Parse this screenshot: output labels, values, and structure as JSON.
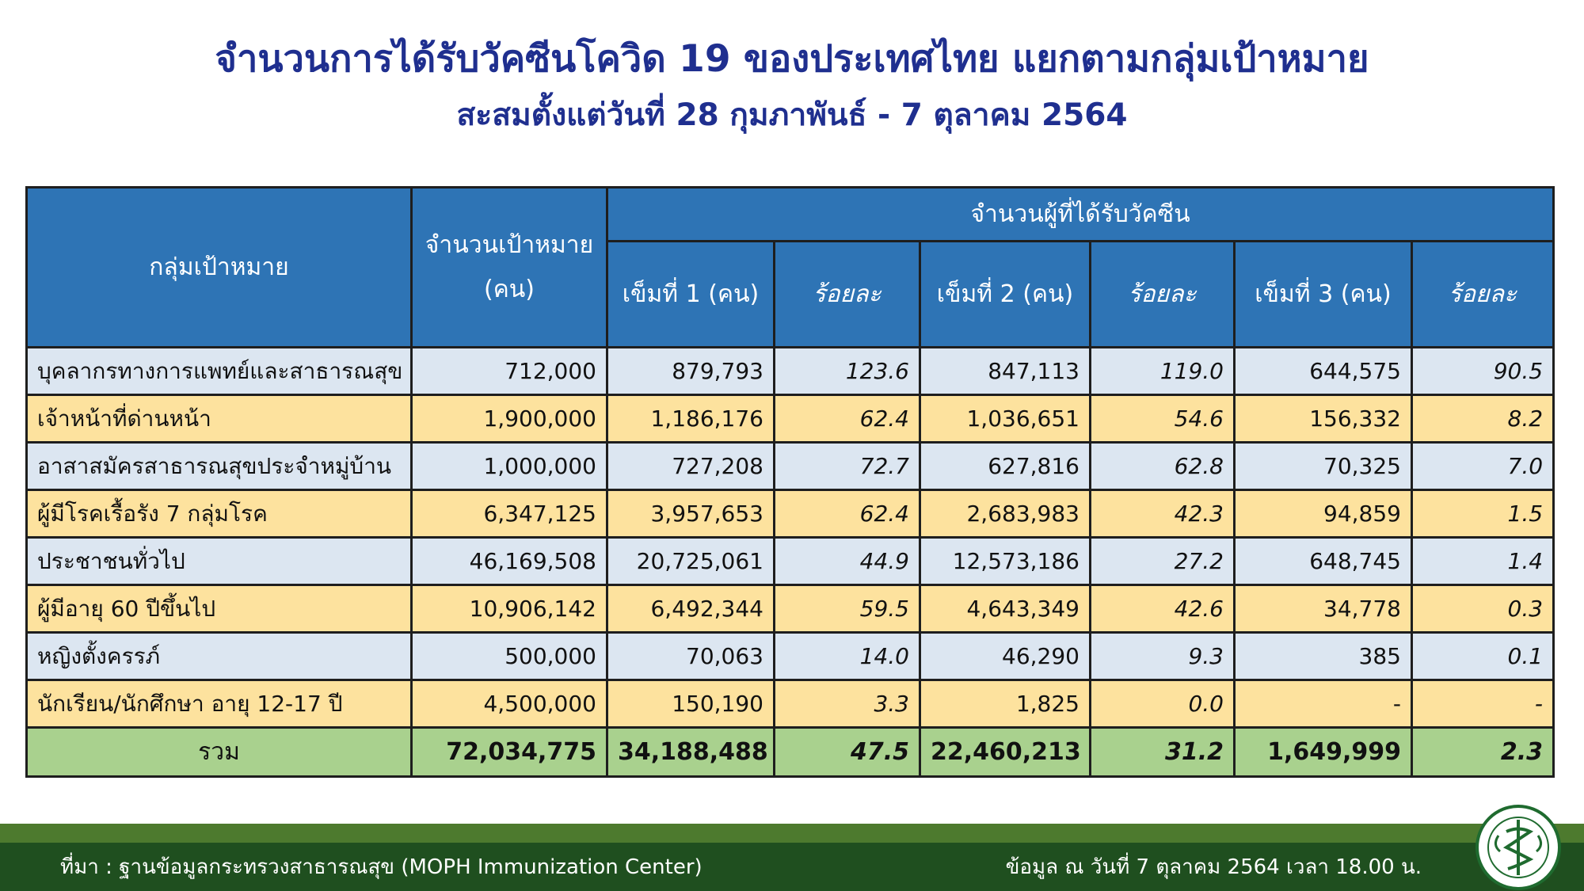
{
  "title": "จำนวนการได้รับวัคซีนโควิด 19 ของประเทศไทย แยกตามกลุ่มเป้าหมาย",
  "subtitle": "สะสมตั้งแต่วันที่ 28 กุมภาพันธ์ - 7 ตุลาคม 2564",
  "table": {
    "headers": {
      "group": "กลุ่มเป้าหมาย",
      "target_line1": "จำนวนเป้าหมาย",
      "target_line2": "(คน)",
      "vaccinated": "จำนวนผู้ที่ได้รับวัคซีน",
      "dose1": "เข็มที่ 1 (คน)",
      "pct1": "ร้อยละ",
      "dose2": "เข็มที่ 2 (คน)",
      "pct2": "ร้อยละ",
      "dose3": "เข็มที่ 3 (คน)",
      "pct3": "ร้อยละ"
    },
    "rows": [
      {
        "group": "บุคลากรทางการแพทย์และสาธารณสุข",
        "target": "712,000",
        "dose1": "879,793",
        "pct1": "123.6",
        "dose2": "847,113",
        "pct2": "119.0",
        "dose3": "644,575",
        "pct3": "90.5"
      },
      {
        "group": "เจ้าหน้าที่ด่านหน้า",
        "target": "1,900,000",
        "dose1": "1,186,176",
        "pct1": "62.4",
        "dose2": "1,036,651",
        "pct2": "54.6",
        "dose3": "156,332",
        "pct3": "8.2"
      },
      {
        "group": "อาสาสมัครสาธารณสุขประจำหมู่บ้าน",
        "target": "1,000,000",
        "dose1": "727,208",
        "pct1": "72.7",
        "dose2": "627,816",
        "pct2": "62.8",
        "dose3": "70,325",
        "pct3": "7.0"
      },
      {
        "group": "ผู้มีโรคเรื้อรัง 7 กลุ่มโรค",
        "target": "6,347,125",
        "dose1": "3,957,653",
        "pct1": "62.4",
        "dose2": "2,683,983",
        "pct2": "42.3",
        "dose3": "94,859",
        "pct3": "1.5"
      },
      {
        "group": "ประชาชนทั่วไป",
        "target": "46,169,508",
        "dose1": "20,725,061",
        "pct1": "44.9",
        "dose2": "12,573,186",
        "pct2": "27.2",
        "dose3": "648,745",
        "pct3": "1.4"
      },
      {
        "group": "ผู้มีอายุ 60 ปีขึ้นไป",
        "target": "10,906,142",
        "dose1": "6,492,344",
        "pct1": "59.5",
        "dose2": "4,643,349",
        "pct2": "42.6",
        "dose3": "34,778",
        "pct3": "0.3"
      },
      {
        "group": "หญิงตั้งครรภ์",
        "target": "500,000",
        "dose1": "70,063",
        "pct1": "14.0",
        "dose2": "46,290",
        "pct2": "9.3",
        "dose3": "385",
        "pct3": "0.1"
      },
      {
        "group": "นักเรียน/นักศึกษา อายุ 12-17 ปี",
        "target": "4,500,000",
        "dose1": "150,190",
        "pct1": "3.3",
        "dose2": "1,825",
        "pct2": "0.0",
        "dose3": "-",
        "pct3": "-"
      }
    ],
    "total": {
      "group": "รวม",
      "target": "72,034,775",
      "dose1": "34,188,488",
      "pct1": "47.5",
      "dose2": "22,460,213",
      "pct2": "31.2",
      "dose3": "1,649,999",
      "pct3": "2.3"
    }
  },
  "footer": {
    "source": "ที่มา : ฐานข้อมูลกระทรวงสาธารณสุข (MOPH  Immunization Center)",
    "as_of": "ข้อมูล ณ วันที่ 7 ตุลาคม 2564 เวลา 18.00 น."
  },
  "logo": {
    "icon": "moph-seal-icon"
  },
  "colors": {
    "title": "#1f2f8f",
    "header_bg": "#2e74b5",
    "row_blue": "#dce6f1",
    "row_gold": "#fde29e",
    "total_bg": "#a9d18e",
    "footer_dark": "#1f4f1f",
    "footer_light": "#4d7a2e"
  }
}
